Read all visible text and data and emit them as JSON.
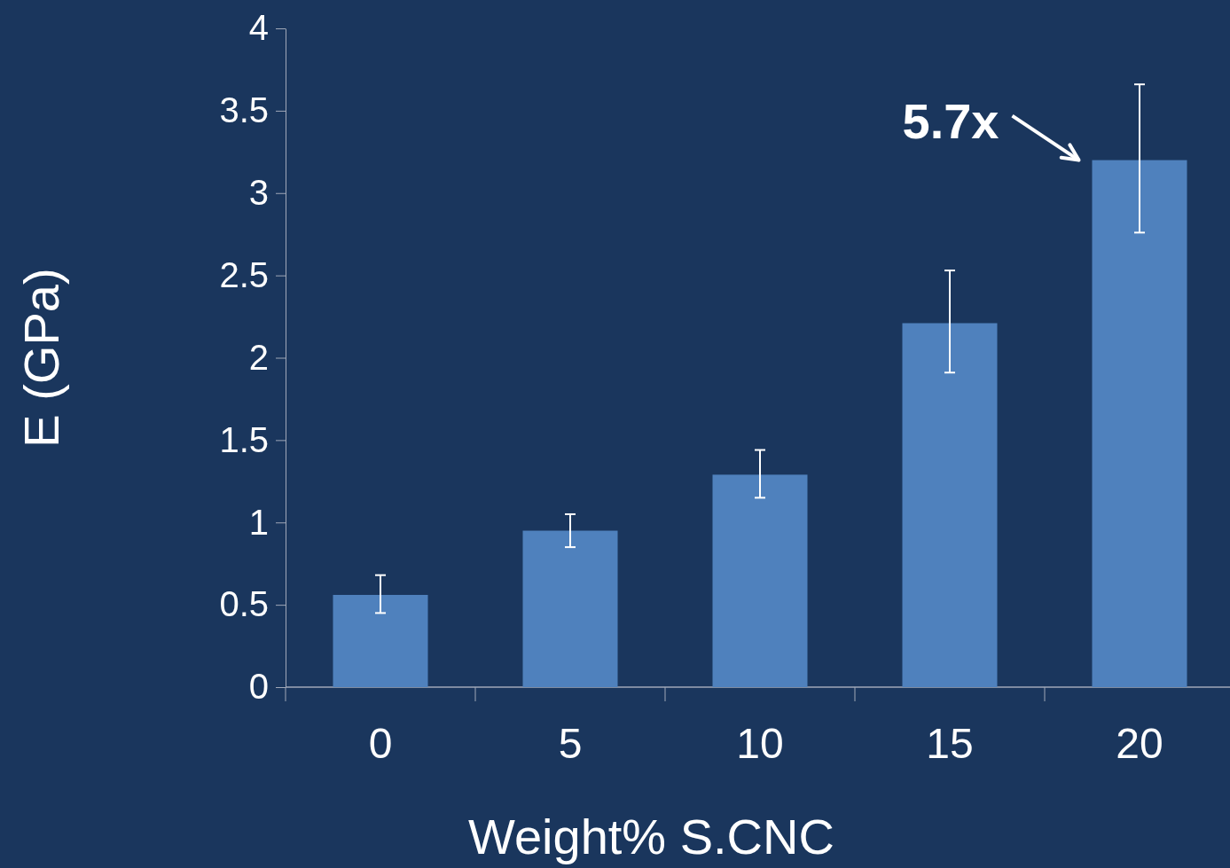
{
  "chart_data": {
    "type": "bar",
    "xlabel": "Weight% S.CNC",
    "ylabel": "E (GPa)",
    "categories": [
      "0",
      "5",
      "10",
      "15",
      "20"
    ],
    "values": [
      0.56,
      0.95,
      1.29,
      2.21,
      3.2
    ],
    "errors": [
      [
        0.45,
        0.68
      ],
      [
        0.85,
        1.05
      ],
      [
        1.15,
        1.44
      ],
      [
        1.91,
        2.53
      ],
      [
        2.76,
        3.66
      ]
    ],
    "color": "#4f81bd",
    "ylim": [
      0,
      4
    ],
    "yticks": [
      0,
      0.5,
      1,
      1.5,
      2,
      2.5,
      3,
      3.5,
      4
    ],
    "grid": false,
    "annotations": [
      {
        "text": "5.7x",
        "x": "20",
        "y": 3.2
      }
    ]
  }
}
